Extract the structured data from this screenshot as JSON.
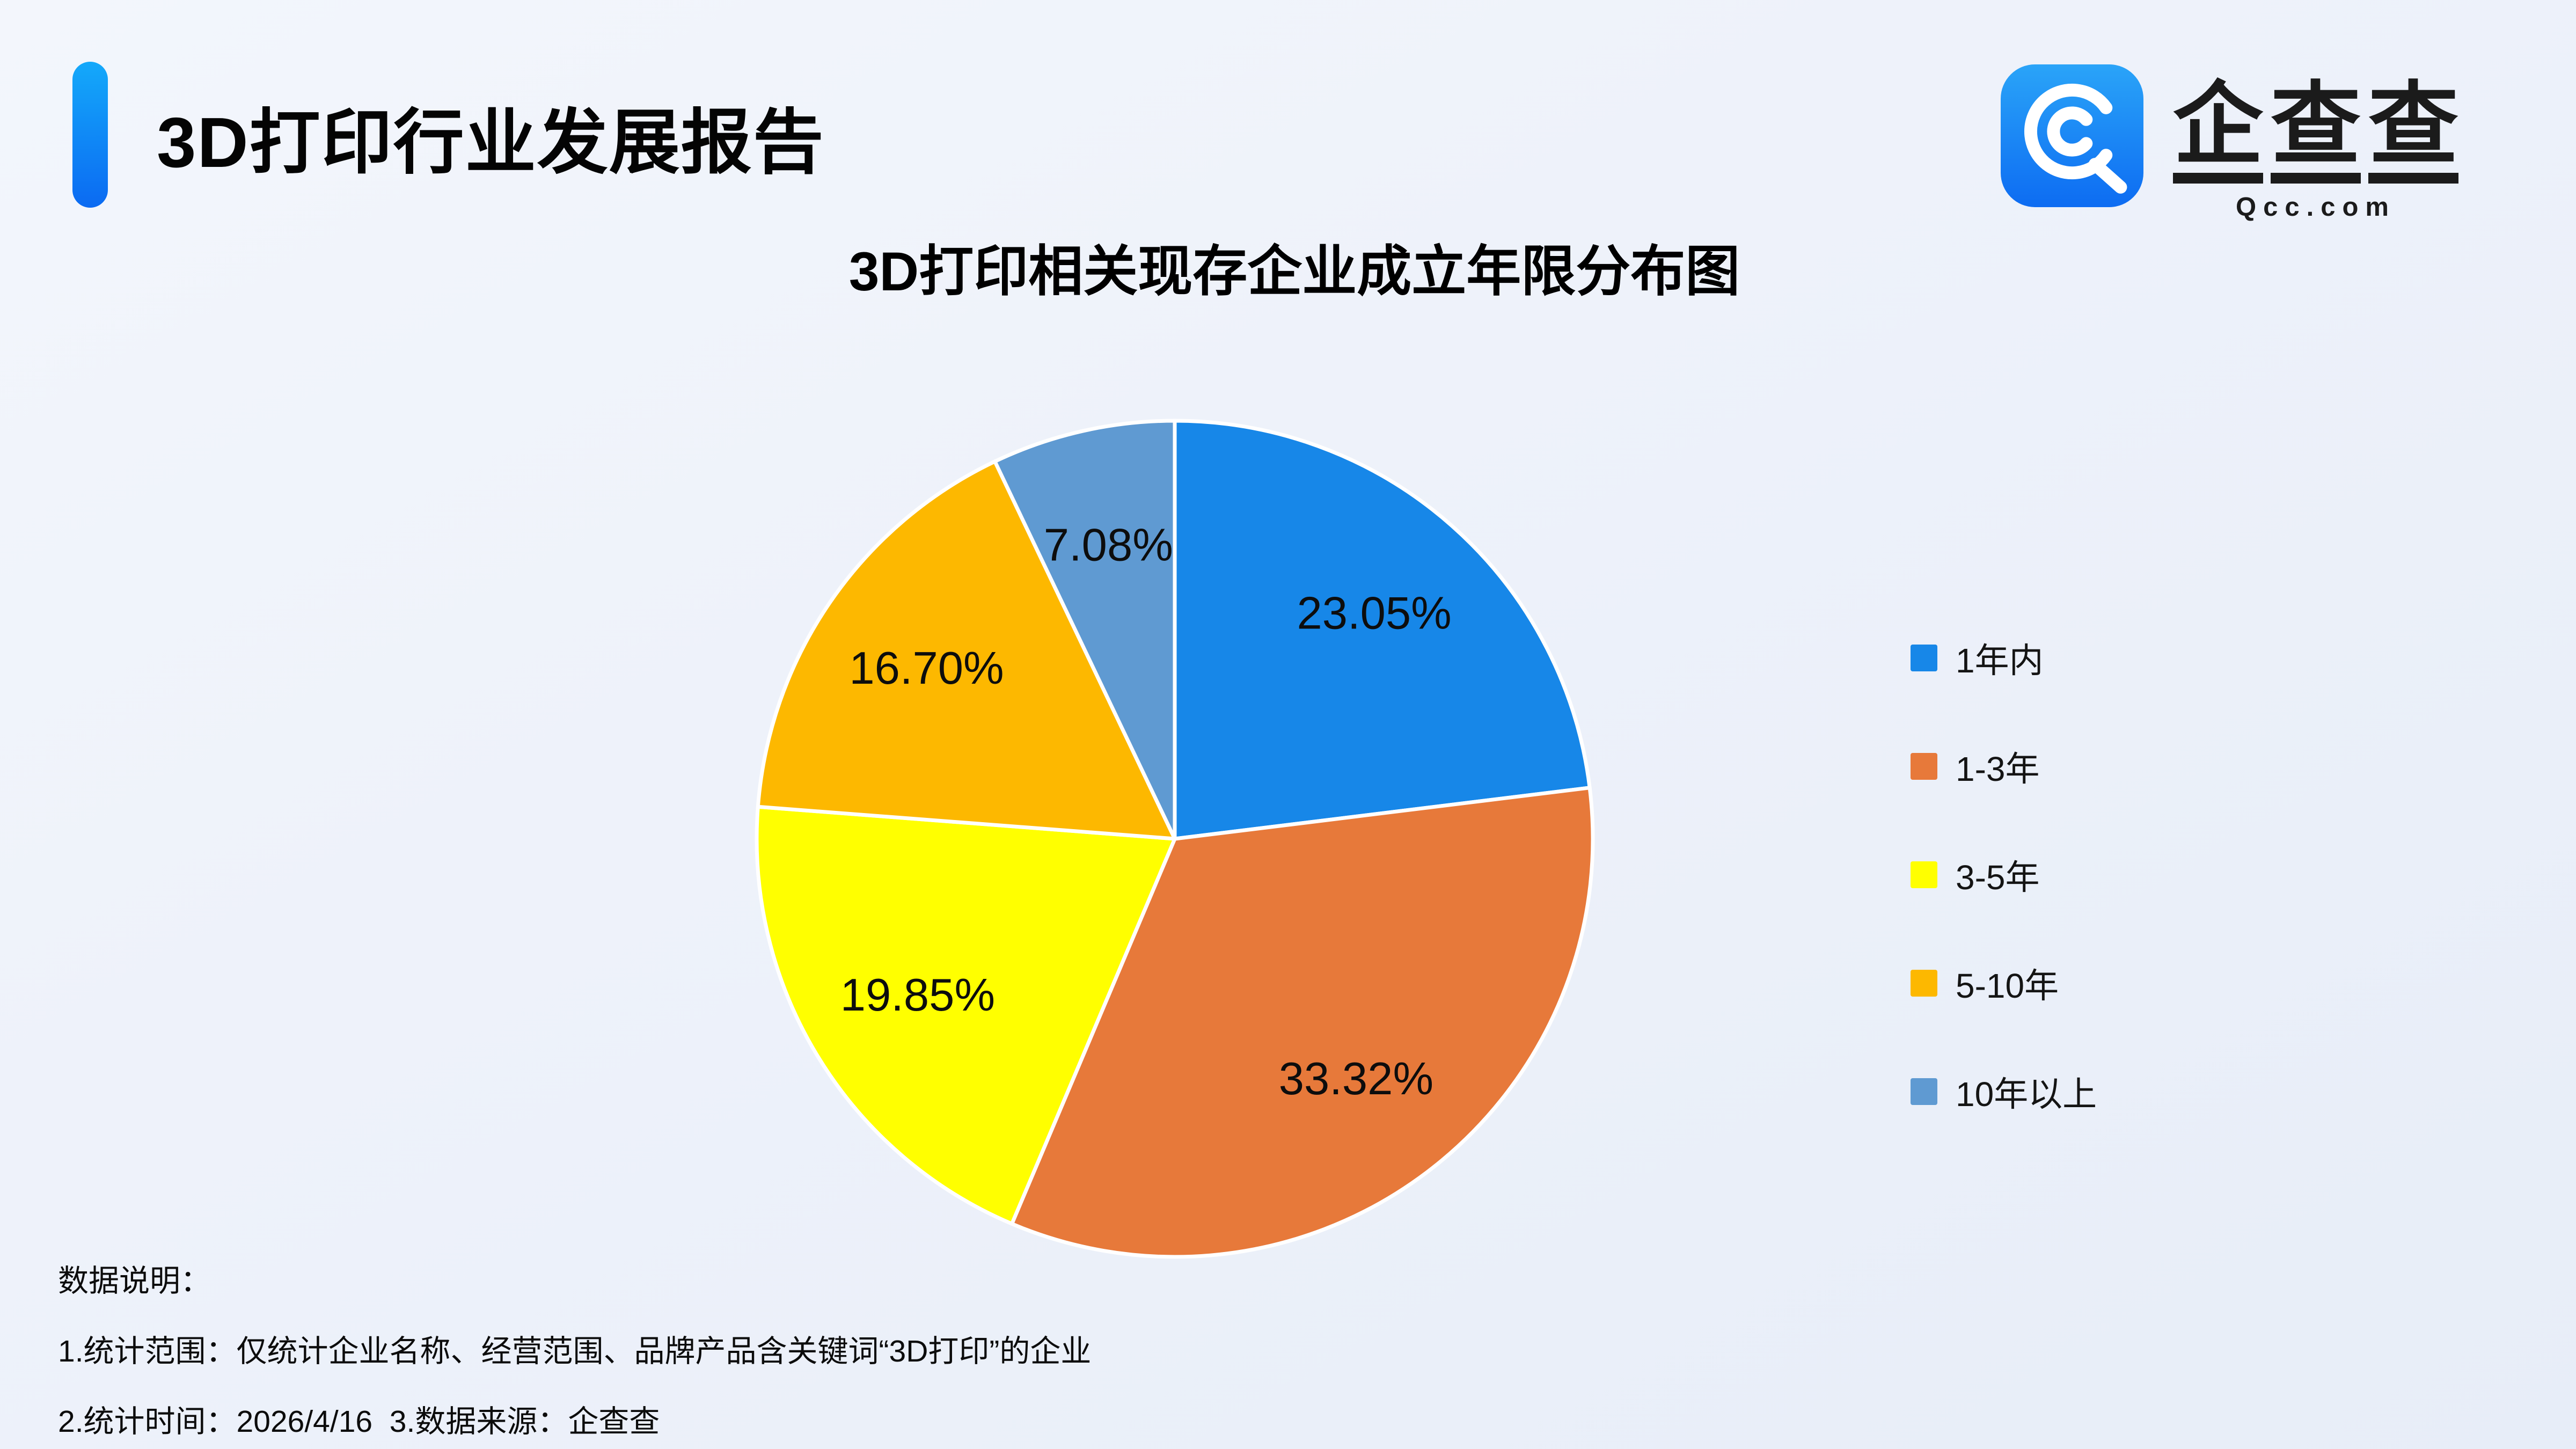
{
  "header": {
    "title": "3D打印行业发展报告"
  },
  "logo": {
    "name": "企查查",
    "chars": [
      "企",
      "查",
      "查"
    ],
    "domain": "Qcc.com",
    "icon": "qcc-spiral-q",
    "icon_color_top": "#2aa4f8",
    "icon_color_bottom": "#0d6cf2"
  },
  "chart_data": {
    "type": "pie",
    "title": "3D打印相关现存企业成立年限分布图",
    "unit": "%",
    "categories": [
      "1年内",
      "1-3年",
      "3-5年",
      "5-10年",
      "10年以上"
    ],
    "values": [
      23.05,
      33.32,
      19.85,
      16.7,
      7.08
    ],
    "slices": [
      {
        "label": "1年内",
        "value": 23.05,
        "display": "23.05%",
        "color": "#1787e8"
      },
      {
        "label": "1-3年",
        "value": 33.32,
        "display": "33.32%",
        "color": "#e7793a"
      },
      {
        "label": "3-5年",
        "value": 19.85,
        "display": "19.85%",
        "color": "#ffff00"
      },
      {
        "label": "5-10年",
        "value": 16.7,
        "display": "16.70%",
        "color": "#fdb800"
      },
      {
        "label": "10年以上",
        "value": 7.08,
        "display": "7.08%",
        "color": "#5f9ad2"
      }
    ],
    "start_angle_deg": -90,
    "direction": "clockwise",
    "label_position": "inside",
    "label_radius_frac": 0.72,
    "legend_position": "right",
    "grid": false
  },
  "footer": {
    "heading": "数据说明：",
    "line1": "1.统计范围：仅统计企业名称、经营范围、品牌产品含关键词“3D打印”的企业",
    "line2": "2.统计时间：2026/4/16  3.数据来源：企查查"
  }
}
